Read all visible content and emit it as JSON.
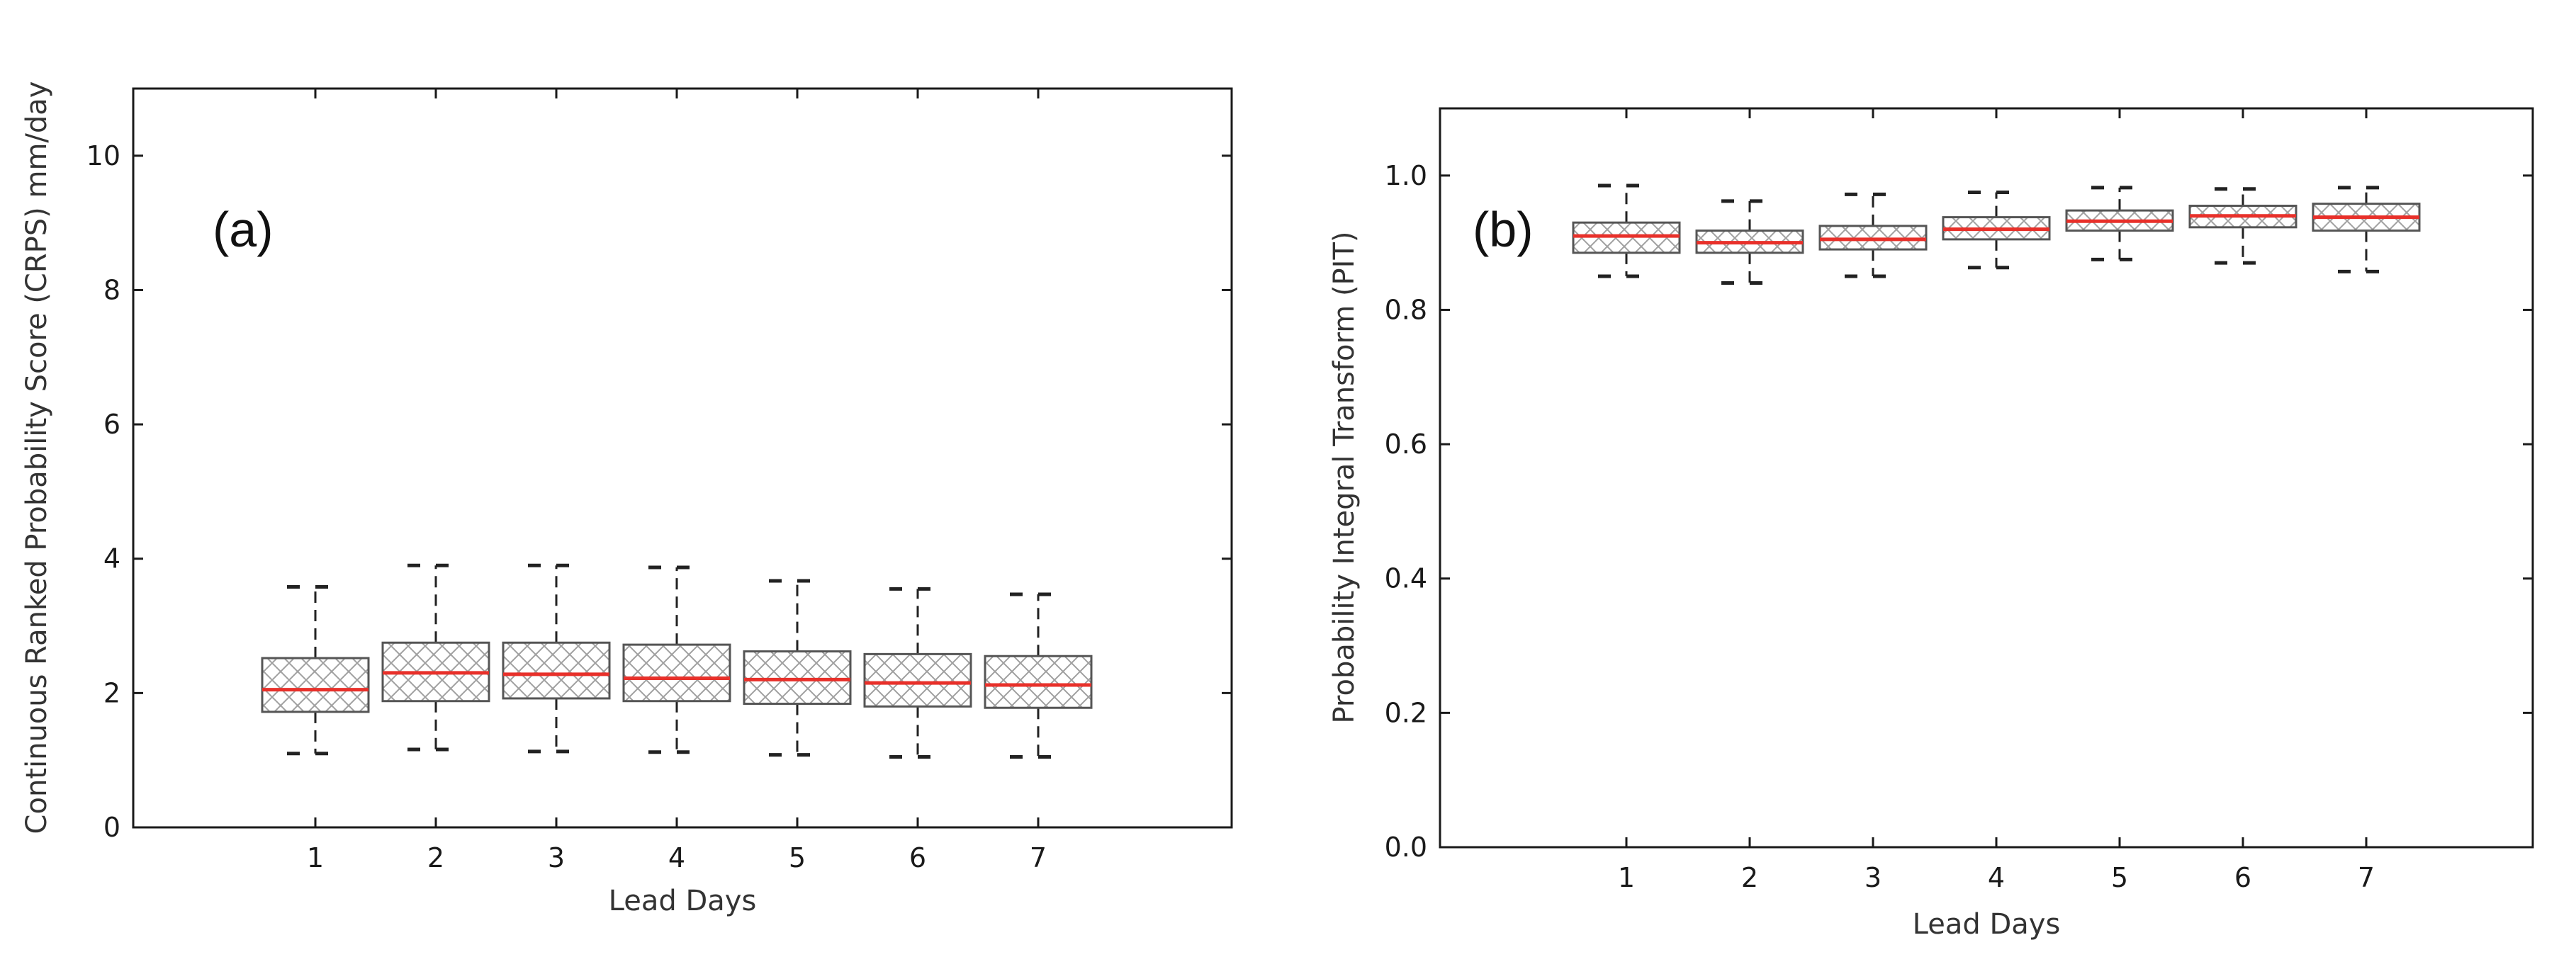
{
  "chart_data": [
    {
      "type": "box",
      "panel_label": "(a)",
      "xlabel": "Lead Days",
      "ylabel": "Continuous Ranked Probability Score (CRPS) mm/day",
      "categories": [
        "1",
        "2",
        "3",
        "4",
        "5",
        "6",
        "7"
      ],
      "ylim": [
        0,
        11
      ],
      "yticks": [
        0,
        2,
        4,
        6,
        8,
        10
      ],
      "ytick_labels": [
        "0",
        "2",
        "4",
        "6",
        "8",
        "10"
      ],
      "boxes": [
        {
          "whisker_low": 1.1,
          "q1": 1.72,
          "median": 2.05,
          "q3": 2.52,
          "whisker_high": 3.58
        },
        {
          "whisker_low": 1.16,
          "q1": 1.88,
          "median": 2.3,
          "q3": 2.75,
          "whisker_high": 3.9
        },
        {
          "whisker_low": 1.13,
          "q1": 1.92,
          "median": 2.28,
          "q3": 2.75,
          "whisker_high": 3.9
        },
        {
          "whisker_low": 1.12,
          "q1": 1.88,
          "median": 2.22,
          "q3": 2.72,
          "whisker_high": 3.87
        },
        {
          "whisker_low": 1.08,
          "q1": 1.84,
          "median": 2.2,
          "q3": 2.62,
          "whisker_high": 3.67
        },
        {
          "whisker_low": 1.05,
          "q1": 1.8,
          "median": 2.15,
          "q3": 2.58,
          "whisker_high": 3.55
        },
        {
          "whisker_low": 1.05,
          "q1": 1.78,
          "median": 2.12,
          "q3": 2.55,
          "whisker_high": 3.47
        }
      ],
      "grid": false,
      "colors": {
        "box": "#555555",
        "median": "#e8302a",
        "hatch": "#9a9a9a",
        "whisker": "#222222"
      }
    },
    {
      "type": "box",
      "panel_label": "(b)",
      "xlabel": "Lead Days",
      "ylabel": "Probability Integral Transform (PIT)",
      "categories": [
        "1",
        "2",
        "3",
        "4",
        "5",
        "6",
        "7"
      ],
      "ylim": [
        0,
        1.1
      ],
      "yticks": [
        0,
        0.2,
        0.4,
        0.6,
        0.8,
        1.0
      ],
      "ytick_labels": [
        "0.0",
        "0.2",
        "0.4",
        "0.6",
        "0.8",
        "1.0"
      ],
      "boxes": [
        {
          "whisker_low": 0.85,
          "q1": 0.885,
          "median": 0.91,
          "q3": 0.93,
          "whisker_high": 0.985
        },
        {
          "whisker_low": 0.84,
          "q1": 0.885,
          "median": 0.9,
          "q3": 0.918,
          "whisker_high": 0.962
        },
        {
          "whisker_low": 0.85,
          "q1": 0.89,
          "median": 0.905,
          "q3": 0.925,
          "whisker_high": 0.972
        },
        {
          "whisker_low": 0.863,
          "q1": 0.905,
          "median": 0.92,
          "q3": 0.938,
          "whisker_high": 0.975
        },
        {
          "whisker_low": 0.875,
          "q1": 0.918,
          "median": 0.932,
          "q3": 0.948,
          "whisker_high": 0.982
        },
        {
          "whisker_low": 0.87,
          "q1": 0.923,
          "median": 0.94,
          "q3": 0.955,
          "whisker_high": 0.98
        },
        {
          "whisker_low": 0.857,
          "q1": 0.918,
          "median": 0.938,
          "q3": 0.958,
          "whisker_high": 0.982
        }
      ],
      "grid": false,
      "colors": {
        "box": "#555555",
        "median": "#e8302a",
        "hatch": "#9a9a9a",
        "whisker": "#222222"
      }
    }
  ]
}
